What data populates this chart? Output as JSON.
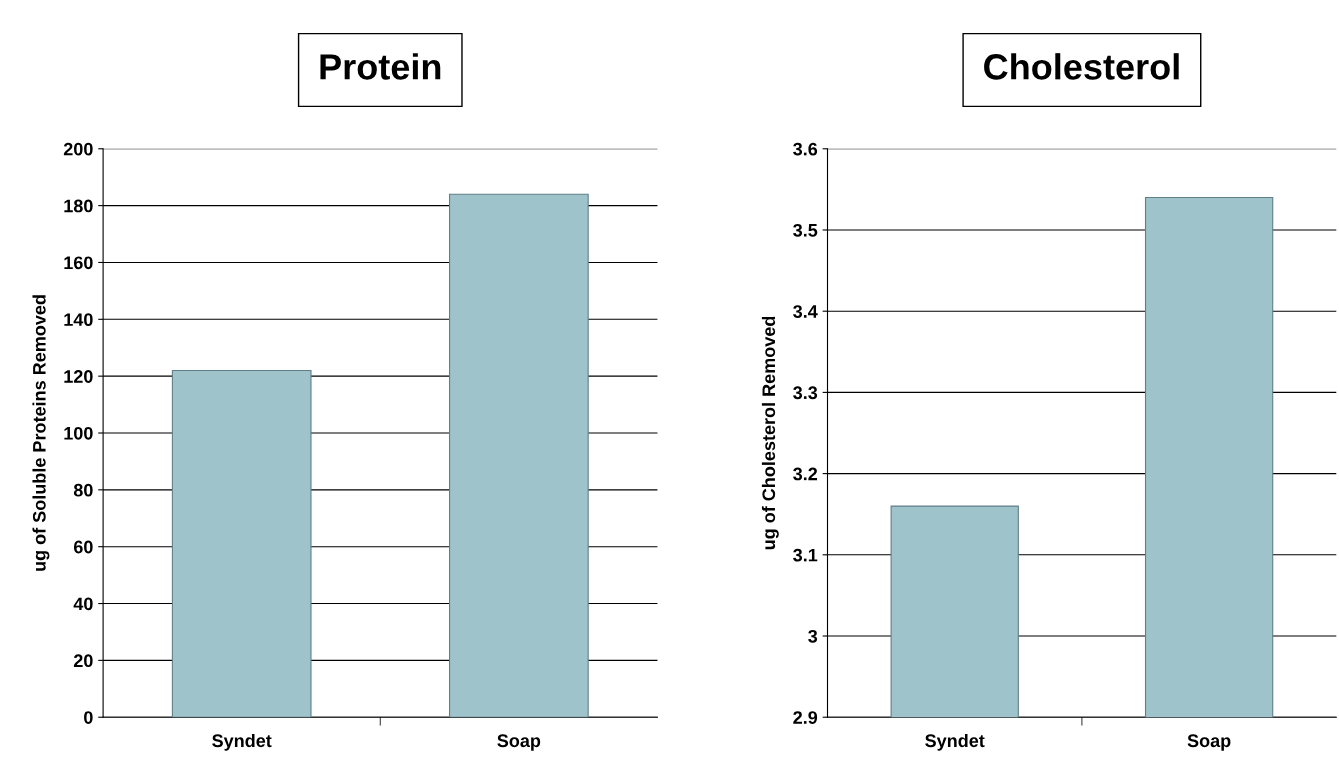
{
  "chart_data": [
    {
      "type": "bar",
      "title": "Protein",
      "ylabel": "ug of Soluble Proteins Removed",
      "categories": [
        "Syndet",
        "Soap"
      ],
      "values": [
        122,
        184
      ],
      "color": "#9fc3cb",
      "ylim": [
        0,
        200
      ],
      "yticks": [
        0,
        20,
        40,
        60,
        80,
        100,
        120,
        140,
        160,
        180,
        200
      ],
      "grid": "y"
    },
    {
      "type": "bar",
      "title": "Cholesterol",
      "ylabel": "ug of Cholesterol Removed",
      "categories": [
        "Syndet",
        "Soap"
      ],
      "values": [
        3.16,
        3.54
      ],
      "color": "#9fc3cb",
      "ylim": [
        2.9,
        3.6
      ],
      "yticks": [
        2.9,
        {
          "value": 3.0,
          "label": "3"
        },
        3.1,
        3.2,
        3.3,
        3.4,
        3.5,
        3.6
      ],
      "grid": "y"
    }
  ]
}
